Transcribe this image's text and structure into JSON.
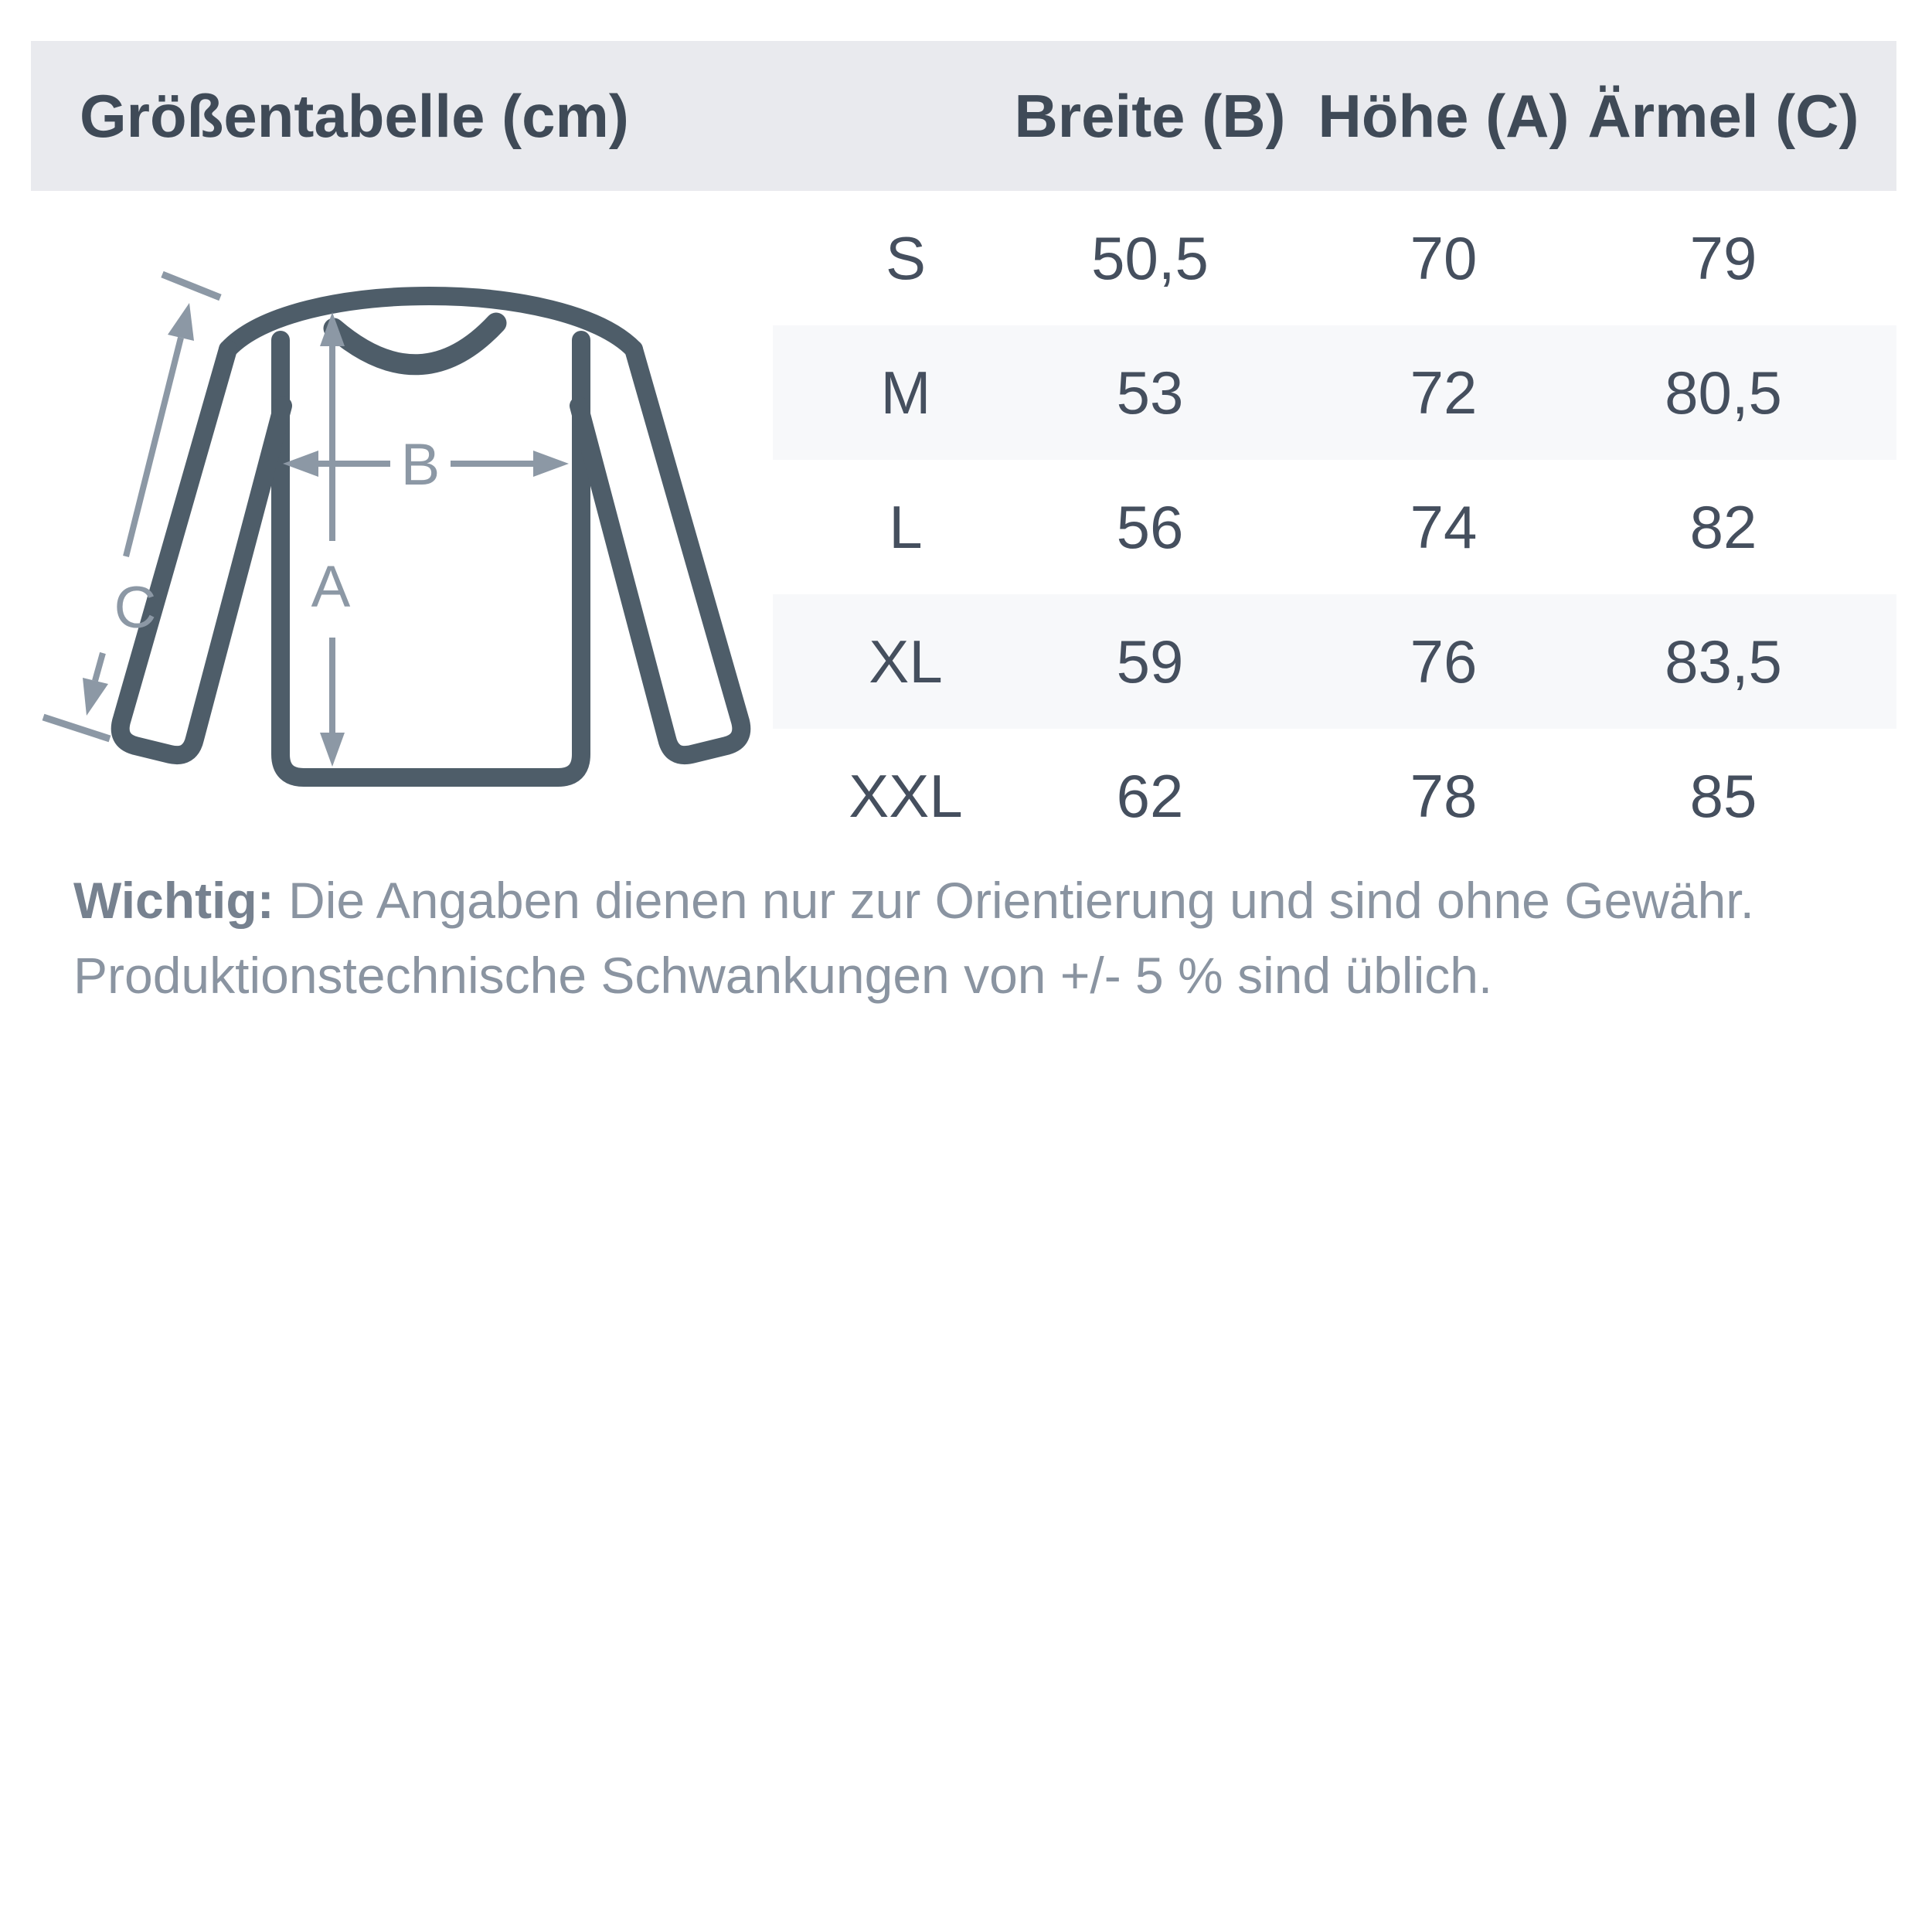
{
  "header": {
    "title": "Größentabelle (cm)",
    "columns": [
      {
        "label": "Breite (B)"
      },
      {
        "label": "Höhe (A)"
      },
      {
        "label": "Ärmel (C)"
      }
    ]
  },
  "table": {
    "unit": "cm",
    "rows": [
      {
        "size": "S",
        "breite": "50,5",
        "hoehe": "70",
        "aermel": "79"
      },
      {
        "size": "M",
        "breite": "53",
        "hoehe": "72",
        "aermel": "80,5"
      },
      {
        "size": "L",
        "breite": "56",
        "hoehe": "74",
        "aermel": "82"
      },
      {
        "size": "XL",
        "breite": "59",
        "hoehe": "76",
        "aermel": "83,5"
      },
      {
        "size": "XXL",
        "breite": "62",
        "hoehe": "78",
        "aermel": "85"
      }
    ]
  },
  "diagram": {
    "height_label": "A",
    "width_label": "B",
    "sleeve_label": "C"
  },
  "note": {
    "label": "Wichtig:",
    "line1": "Die Angaben dienen nur zur Orientierung und sind ohne Gewähr.",
    "line2": "Produktionstechnische Schwankungen von +/- 5 % sind üblich."
  },
  "colors": {
    "header_band": "#e9eaee",
    "row_stripe": "#f7f8fa",
    "heading_text": "#3f4a57",
    "cell_text": "#454f5e",
    "garment_outline": "#4e5d69",
    "measure_arrow": "#8c98a5",
    "note_text": "#8a94a1",
    "note_label_text": "#76818f"
  }
}
